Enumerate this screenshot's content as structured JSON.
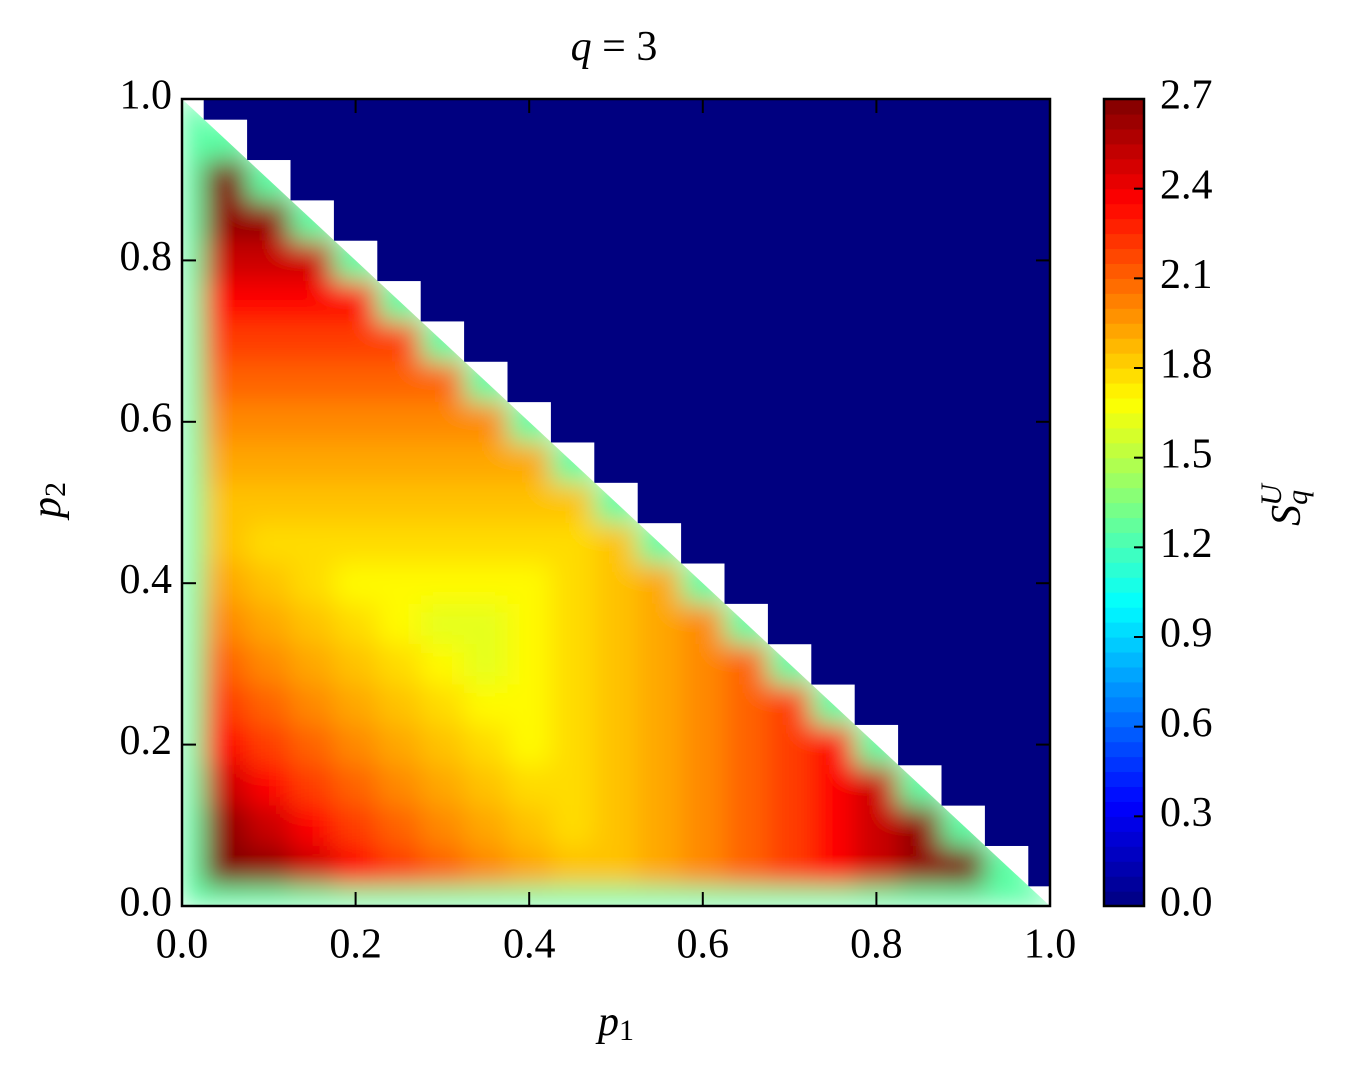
{
  "chart_data": {
    "type": "contour",
    "title": {
      "base": "q",
      "rest": " = 3"
    },
    "x_label": {
      "base": "p",
      "sub": "1"
    },
    "y_label": {
      "base": "p",
      "sub": "2"
    },
    "colorbar_label": {
      "base": "S",
      "sub": "q",
      "sup": "U"
    },
    "colormap": "jet",
    "xlim": [
      0,
      1
    ],
    "ylim": [
      0,
      1
    ],
    "zlim": [
      0,
      2.7
    ],
    "xticks": [
      {
        "value": 0,
        "label": "0.0"
      },
      0.2,
      0.4,
      0.6,
      0.8,
      {
        "value": 1,
        "label": "1.0"
      }
    ],
    "yticks": [
      {
        "value": 0,
        "label": "0.0"
      },
      0.2,
      0.4,
      0.6,
      0.8,
      {
        "value": 1,
        "label": "1.0"
      }
    ],
    "zticks": [
      {
        "value": 0,
        "label": "0.0"
      },
      0.3,
      0.6,
      0.9,
      1.2,
      1.5,
      1.8,
      2.1,
      2.4,
      2.7
    ],
    "x": [
      0,
      0.05,
      0.1,
      0.15,
      0.2,
      0.25,
      0.3,
      0.35,
      0.4,
      0.45,
      0.5,
      0.55,
      0.6,
      0.65,
      0.7,
      0.75,
      0.8,
      0.85,
      0.9,
      0.95,
      1
    ],
    "y": [
      0,
      0.05,
      0.1,
      0.15,
      0.2,
      0.25,
      0.3,
      0.35,
      0.4,
      0.45,
      0.5,
      0.55,
      0.6,
      0.65,
      0.7,
      0.75,
      0.8,
      0.85,
      0.9,
      0.95,
      1
    ],
    "z": [
      [
        1.25,
        1.25,
        1.25,
        1.25,
        1.25,
        1.25,
        1.25,
        1.25,
        1.25,
        1.25,
        1.25,
        1.25,
        1.25,
        1.25,
        1.25,
        1.25,
        1.25,
        1.25,
        1.25,
        1.25,
        1.25
      ],
      [
        1.25,
        2.7,
        2.65,
        2.5,
        2.35,
        2.2,
        2.1,
        2.0,
        1.92,
        1.85,
        1.85,
        1.92,
        2.0,
        2.1,
        2.2,
        2.35,
        2.5,
        2.65,
        2.7,
        1.25,
        0
      ],
      [
        1.25,
        2.65,
        2.5,
        2.35,
        2.2,
        2.1,
        2.0,
        1.92,
        1.85,
        1.78,
        1.85,
        1.92,
        2.0,
        2.1,
        2.2,
        2.35,
        2.5,
        2.65,
        1.25,
        0,
        0
      ],
      [
        1.25,
        2.5,
        2.35,
        2.2,
        2.1,
        2.0,
        1.92,
        1.85,
        1.78,
        1.78,
        1.85,
        1.92,
        2.0,
        2.1,
        2.2,
        2.35,
        2.5,
        1.25,
        0,
        0,
        0
      ],
      [
        1.25,
        2.35,
        2.2,
        2.1,
        2.0,
        1.92,
        1.85,
        1.78,
        1.7,
        1.78,
        1.85,
        1.92,
        2.0,
        2.1,
        2.2,
        2.35,
        1.25,
        0,
        0,
        0,
        0
      ],
      [
        1.25,
        2.2,
        2.1,
        2.0,
        1.92,
        1.85,
        1.78,
        1.7,
        1.7,
        1.78,
        1.85,
        1.92,
        2.0,
        2.1,
        2.2,
        1.25,
        0,
        0,
        0,
        0,
        0
      ],
      [
        1.25,
        2.1,
        2.0,
        1.92,
        1.85,
        1.78,
        1.7,
        1.62,
        1.7,
        1.78,
        1.85,
        1.92,
        2.0,
        2.1,
        1.25,
        0,
        0,
        0,
        0,
        0,
        0
      ],
      [
        1.25,
        2.0,
        1.92,
        1.85,
        1.78,
        1.7,
        1.62,
        1.62,
        1.7,
        1.78,
        1.85,
        1.92,
        2.0,
        1.25,
        0,
        0,
        0,
        0,
        0,
        0,
        0
      ],
      [
        1.25,
        1.92,
        1.85,
        1.78,
        1.7,
        1.7,
        1.7,
        1.7,
        1.7,
        1.78,
        1.85,
        1.92,
        1.25,
        0,
        0,
        0,
        0,
        0,
        0,
        0,
        0
      ],
      [
        1.25,
        1.85,
        1.78,
        1.78,
        1.78,
        1.78,
        1.78,
        1.78,
        1.78,
        1.78,
        1.85,
        1.25,
        0,
        0,
        0,
        0,
        0,
        0,
        0,
        0,
        0
      ],
      [
        1.25,
        1.85,
        1.85,
        1.85,
        1.85,
        1.85,
        1.85,
        1.85,
        1.85,
        1.85,
        1.25,
        0,
        0,
        0,
        0,
        0,
        0,
        0,
        0,
        0,
        0
      ],
      [
        1.25,
        1.92,
        1.92,
        1.92,
        1.92,
        1.92,
        1.92,
        1.92,
        1.92,
        1.25,
        0,
        0,
        0,
        0,
        0,
        0,
        0,
        0,
        0,
        0,
        0
      ],
      [
        1.25,
        2.0,
        2.0,
        2.0,
        2.0,
        2.0,
        2.0,
        2.0,
        1.25,
        0,
        0,
        0,
        0,
        0,
        0,
        0,
        0,
        0,
        0,
        0,
        0
      ],
      [
        1.25,
        2.1,
        2.1,
        2.1,
        2.1,
        2.1,
        2.1,
        1.25,
        0,
        0,
        0,
        0,
        0,
        0,
        0,
        0,
        0,
        0,
        0,
        0,
        0
      ],
      [
        1.25,
        2.2,
        2.2,
        2.2,
        2.2,
        2.2,
        1.25,
        0,
        0,
        0,
        0,
        0,
        0,
        0,
        0,
        0,
        0,
        0,
        0,
        0,
        0
      ],
      [
        1.25,
        2.35,
        2.35,
        2.35,
        2.35,
        1.25,
        0,
        0,
        0,
        0,
        0,
        0,
        0,
        0,
        0,
        0,
        0,
        0,
        0,
        0,
        0
      ],
      [
        1.25,
        2.5,
        2.5,
        2.5,
        1.25,
        0,
        0,
        0,
        0,
        0,
        0,
        0,
        0,
        0,
        0,
        0,
        0,
        0,
        0,
        0,
        0
      ],
      [
        1.25,
        2.65,
        2.65,
        1.25,
        0,
        0,
        0,
        0,
        0,
        0,
        0,
        0,
        0,
        0,
        0,
        0,
        0,
        0,
        0,
        0,
        0
      ],
      [
        1.25,
        2.7,
        1.25,
        0,
        0,
        0,
        0,
        0,
        0,
        0,
        0,
        0,
        0,
        0,
        0,
        0,
        0,
        0,
        0,
        0,
        0
      ],
      [
        1.25,
        1.25,
        0,
        0,
        0,
        0,
        0,
        0,
        0,
        0,
        0,
        0,
        0,
        0,
        0,
        0,
        0,
        0,
        0,
        0,
        0
      ],
      [
        1.25,
        0,
        0,
        0,
        0,
        0,
        0,
        0,
        0,
        0,
        0,
        0,
        0,
        0,
        0,
        0,
        0,
        0,
        0,
        0,
        0
      ]
    ]
  }
}
